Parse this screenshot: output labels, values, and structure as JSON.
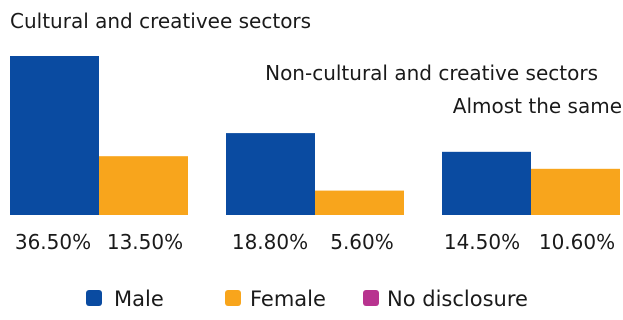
{
  "chart_data": {
    "type": "bar",
    "categories": [
      "Cultural and creativee sectors",
      "Non-cultural and creative sectors",
      "Almost the same"
    ],
    "series": [
      {
        "name": "Male",
        "values": [
          36.5,
          18.8,
          14.5
        ],
        "labels": [
          "36.50%",
          "18.80%",
          "14.50%"
        ],
        "color": "#0a4ba1"
      },
      {
        "name": "Female",
        "values": [
          13.5,
          5.6,
          10.6
        ],
        "labels": [
          "13.50%",
          "5.60%",
          "10.60%"
        ],
        "color": "#f8a51c"
      },
      {
        "name": "No disclosure",
        "values": [
          0,
          0,
          0
        ],
        "labels": [
          "",
          "",
          ""
        ],
        "color": "#b8338f"
      }
    ],
    "unit": "%",
    "ylim": [
      0,
      36.5
    ],
    "grid": false,
    "legend": "bottom-center"
  }
}
